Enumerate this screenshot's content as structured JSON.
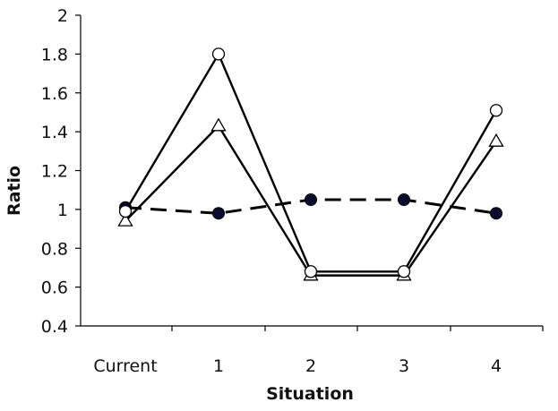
{
  "chart_data": {
    "type": "line",
    "xlabel": "Situation",
    "ylabel": "Ratio",
    "categories": [
      "Current",
      "1",
      "2",
      "3",
      "4"
    ],
    "yticks": [
      "0.4",
      "0.6",
      "0.8",
      "1",
      "1.2",
      "1.4",
      "1.6",
      "1.8",
      "2"
    ],
    "ylim": [
      0.4,
      2.0
    ],
    "grid": false,
    "legend": "none",
    "series": [
      {
        "marker": "open-circle",
        "line": "solid",
        "color": "#000000",
        "values": [
          0.99,
          1.8,
          0.68,
          0.68,
          1.51
        ]
      },
      {
        "marker": "open-triangle",
        "line": "solid",
        "color": "#000000",
        "values": [
          0.94,
          1.43,
          0.66,
          0.66,
          1.35
        ]
      },
      {
        "marker": "filled-circle",
        "line": "dashed",
        "color": "#000000",
        "marker_fill": "#0b0b2e",
        "values": [
          1.01,
          0.98,
          1.05,
          1.05,
          0.98
        ]
      }
    ]
  }
}
